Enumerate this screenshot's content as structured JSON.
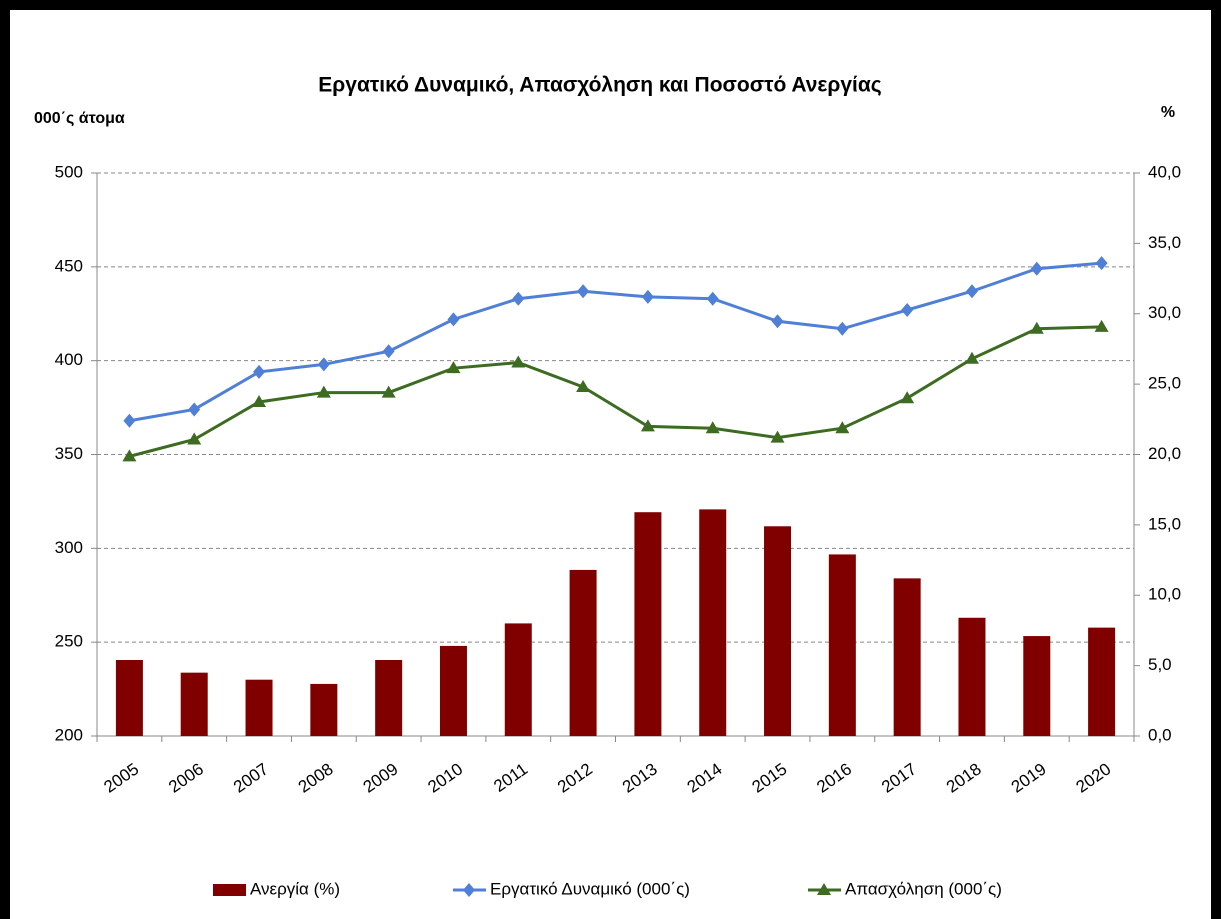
{
  "chart_data": {
    "type": "combo",
    "title": "Εργατικό Δυναμικό, Απασχόληση και Ποσοστό Ανεργίας",
    "y_label": "000΄ς άτομα",
    "y2_label": "%",
    "categories": [
      "2005",
      "2006",
      "2007",
      "2008",
      "2009",
      "2010",
      "2011",
      "2012",
      "2013",
      "2014",
      "2015",
      "2016",
      "2017",
      "2018",
      "2019",
      "2020"
    ],
    "series": [
      {
        "name": "Ανεργία (%)",
        "type": "bar",
        "axis": "y2",
        "color": "#800000",
        "values": [
          5.4,
          4.5,
          4.0,
          3.7,
          5.4,
          6.4,
          8.0,
          11.8,
          15.9,
          16.1,
          14.9,
          12.9,
          11.2,
          8.4,
          7.1,
          7.7
        ]
      },
      {
        "name": "Εργατικό Δυναμικό (000΄ς)",
        "type": "line",
        "marker": "diamond",
        "color": "#4f7fd6",
        "values": [
          368,
          374,
          394,
          398,
          405,
          422,
          433,
          437,
          434,
          433,
          421,
          417,
          427,
          437,
          449,
          452
        ]
      },
      {
        "name": "Απασχόληση (000΄ς)",
        "type": "line",
        "marker": "triangle",
        "color": "#3d6b21",
        "values": [
          349,
          358,
          378,
          383,
          383,
          396,
          399,
          386,
          365,
          364,
          359,
          364,
          380,
          401,
          417,
          418
        ]
      }
    ],
    "ylim": [
      200,
      500
    ],
    "yticks": [
      200,
      250,
      300,
      350,
      400,
      450,
      500
    ],
    "y2lim": [
      0,
      40
    ],
    "y2ticks": [
      {
        "value": 0,
        "label": "0,0"
      },
      {
        "value": 5,
        "label": "5,0"
      },
      {
        "value": 10,
        "label": "10,0"
      },
      {
        "value": 15,
        "label": "15,0"
      },
      {
        "value": 20,
        "label": "20,0"
      },
      {
        "value": 25,
        "label": "25,0"
      },
      {
        "value": 30,
        "label": "30,0"
      },
      {
        "value": 35,
        "label": "35,0"
      },
      {
        "value": 40,
        "label": "40,0"
      }
    ],
    "grid": true,
    "legend": "bottom"
  }
}
